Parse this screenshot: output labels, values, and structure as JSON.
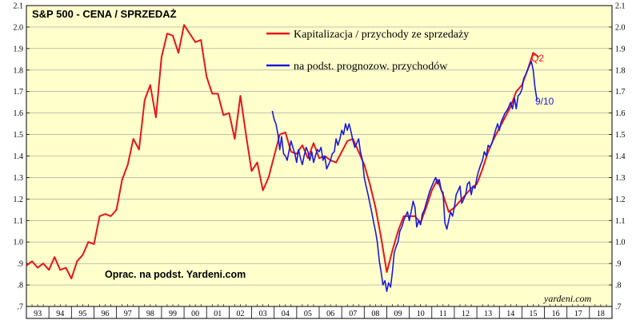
{
  "chart_data": {
    "type": "line",
    "title": "S&P 500",
    "subtitle": "CENA / SPRZEDAŻ",
    "x_tick_labels": [
      "93",
      "94",
      "95",
      "96",
      "97",
      "98",
      "99",
      "00",
      "01",
      "02",
      "03",
      "04",
      "05",
      "06",
      "07",
      "08",
      "09",
      "10",
      "11",
      "12",
      "13",
      "14",
      "15",
      "16",
      "17",
      "18"
    ],
    "y_tick_labels": [
      ".7",
      ".8",
      ".9",
      "1.0",
      "1.1",
      "1.2",
      "1.3",
      "1.4",
      "1.5",
      "1.6",
      "1.7",
      "1.8",
      "1.9",
      "2.0",
      "2.1"
    ],
    "ylim": [
      0.7,
      2.1
    ],
    "xlim": [
      1993.0,
      2019.0
    ],
    "background": "#ffffcc",
    "grid": "horizontal",
    "series": [
      {
        "name": "Kapitalizacja / przychody ze sprzedaży",
        "color": "#e8141a",
        "end_label": "Q2",
        "points": [
          [
            1993.0,
            0.89
          ],
          [
            1993.25,
            0.91
          ],
          [
            1993.5,
            0.88
          ],
          [
            1993.75,
            0.9
          ],
          [
            1994.0,
            0.87
          ],
          [
            1994.25,
            0.93
          ],
          [
            1994.5,
            0.87
          ],
          [
            1994.75,
            0.88
          ],
          [
            1995.0,
            0.83
          ],
          [
            1995.25,
            0.91
          ],
          [
            1995.5,
            0.94
          ],
          [
            1995.75,
            1.0
          ],
          [
            1996.0,
            0.99
          ],
          [
            1996.25,
            1.12
          ],
          [
            1996.5,
            1.13
          ],
          [
            1996.75,
            1.12
          ],
          [
            1997.0,
            1.15
          ],
          [
            1997.25,
            1.29
          ],
          [
            1997.5,
            1.36
          ],
          [
            1997.75,
            1.48
          ],
          [
            1998.0,
            1.43
          ],
          [
            1998.25,
            1.66
          ],
          [
            1998.5,
            1.73
          ],
          [
            1998.75,
            1.58
          ],
          [
            1999.0,
            1.86
          ],
          [
            1999.25,
            1.97
          ],
          [
            1999.5,
            1.96
          ],
          [
            1999.75,
            1.88
          ],
          [
            2000.0,
            2.01
          ],
          [
            2000.25,
            1.97
          ],
          [
            2000.5,
            1.93
          ],
          [
            2000.75,
            1.94
          ],
          [
            2001.0,
            1.77
          ],
          [
            2001.25,
            1.69
          ],
          [
            2001.5,
            1.69
          ],
          [
            2001.75,
            1.59
          ],
          [
            2002.0,
            1.6
          ],
          [
            2002.25,
            1.48
          ],
          [
            2002.5,
            1.68
          ],
          [
            2002.75,
            1.5
          ],
          [
            2003.0,
            1.33
          ],
          [
            2003.25,
            1.37
          ],
          [
            2003.5,
            1.24
          ],
          [
            2003.75,
            1.3
          ],
          [
            2004.0,
            1.4
          ],
          [
            2004.25,
            1.5
          ],
          [
            2004.5,
            1.51
          ],
          [
            2004.75,
            1.42
          ],
          [
            2005.0,
            1.41
          ],
          [
            2005.25,
            1.45
          ],
          [
            2005.5,
            1.39
          ],
          [
            2005.75,
            1.46
          ],
          [
            2006.0,
            1.39
          ],
          [
            2006.25,
            1.4
          ],
          [
            2006.5,
            1.38
          ],
          [
            2006.75,
            1.37
          ],
          [
            2007.0,
            1.42
          ],
          [
            2007.25,
            1.47
          ],
          [
            2007.5,
            1.48
          ],
          [
            2007.75,
            1.42
          ],
          [
            2008.0,
            1.36
          ],
          [
            2008.25,
            1.27
          ],
          [
            2008.5,
            1.16
          ],
          [
            2008.75,
            1.02
          ],
          [
            2009.0,
            0.86
          ],
          [
            2009.25,
            0.96
          ],
          [
            2009.5,
            1.05
          ],
          [
            2009.75,
            1.12
          ],
          [
            2010.0,
            1.12
          ],
          [
            2010.25,
            1.12
          ],
          [
            2010.5,
            1.09
          ],
          [
            2010.75,
            1.16
          ],
          [
            2011.0,
            1.24
          ],
          [
            2011.25,
            1.29
          ],
          [
            2011.5,
            1.22
          ],
          [
            2011.75,
            1.14
          ],
          [
            2012.0,
            1.16
          ],
          [
            2012.25,
            1.19
          ],
          [
            2012.5,
            1.22
          ],
          [
            2012.75,
            1.25
          ],
          [
            2013.0,
            1.27
          ],
          [
            2013.25,
            1.34
          ],
          [
            2013.5,
            1.42
          ],
          [
            2013.75,
            1.48
          ],
          [
            2014.0,
            1.53
          ],
          [
            2014.25,
            1.58
          ],
          [
            2014.5,
            1.63
          ],
          [
            2014.75,
            1.7
          ],
          [
            2015.0,
            1.73
          ],
          [
            2015.25,
            1.8
          ],
          [
            2015.5,
            1.88
          ],
          [
            2015.75,
            1.86
          ]
        ]
      },
      {
        "name": "na podst. prognozow. przychodów",
        "color": "#1a1adc",
        "end_label": "9/10",
        "points": [
          [
            2003.92,
            1.61
          ],
          [
            2004.0,
            1.57
          ],
          [
            2004.08,
            1.55
          ],
          [
            2004.17,
            1.5
          ],
          [
            2004.25,
            1.43
          ],
          [
            2004.33,
            1.49
          ],
          [
            2004.42,
            1.41
          ],
          [
            2004.5,
            1.4
          ],
          [
            2004.58,
            1.38
          ],
          [
            2004.67,
            1.43
          ],
          [
            2004.75,
            1.47
          ],
          [
            2004.83,
            1.44
          ],
          [
            2004.92,
            1.41
          ],
          [
            2005.0,
            1.37
          ],
          [
            2005.08,
            1.43
          ],
          [
            2005.17,
            1.39
          ],
          [
            2005.25,
            1.36
          ],
          [
            2005.33,
            1.4
          ],
          [
            2005.42,
            1.44
          ],
          [
            2005.5,
            1.42
          ],
          [
            2005.58,
            1.38
          ],
          [
            2005.67,
            1.42
          ],
          [
            2005.75,
            1.37
          ],
          [
            2005.83,
            1.4
          ],
          [
            2005.92,
            1.43
          ],
          [
            2006.0,
            1.42
          ],
          [
            2006.08,
            1.44
          ],
          [
            2006.17,
            1.38
          ],
          [
            2006.25,
            1.4
          ],
          [
            2006.33,
            1.34
          ],
          [
            2006.42,
            1.36
          ],
          [
            2006.5,
            1.38
          ],
          [
            2006.58,
            1.41
          ],
          [
            2006.67,
            1.42
          ],
          [
            2006.75,
            1.48
          ],
          [
            2006.83,
            1.45
          ],
          [
            2006.92,
            1.48
          ],
          [
            2007.0,
            1.52
          ],
          [
            2007.08,
            1.5
          ],
          [
            2007.17,
            1.55
          ],
          [
            2007.25,
            1.52
          ],
          [
            2007.33,
            1.55
          ],
          [
            2007.42,
            1.51
          ],
          [
            2007.5,
            1.47
          ],
          [
            2007.58,
            1.44
          ],
          [
            2007.67,
            1.46
          ],
          [
            2007.75,
            1.48
          ],
          [
            2007.83,
            1.42
          ],
          [
            2007.92,
            1.38
          ],
          [
            2008.0,
            1.3
          ],
          [
            2008.08,
            1.26
          ],
          [
            2008.17,
            1.22
          ],
          [
            2008.25,
            1.18
          ],
          [
            2008.33,
            1.14
          ],
          [
            2008.42,
            1.09
          ],
          [
            2008.5,
            1.05
          ],
          [
            2008.58,
            1.0
          ],
          [
            2008.67,
            0.91
          ],
          [
            2008.75,
            0.86
          ],
          [
            2008.83,
            0.8
          ],
          [
            2008.92,
            0.82
          ],
          [
            2009.0,
            0.77
          ],
          [
            2009.08,
            0.81
          ],
          [
            2009.17,
            0.79
          ],
          [
            2009.25,
            0.86
          ],
          [
            2009.33,
            0.95
          ],
          [
            2009.42,
            0.98
          ],
          [
            2009.5,
            1.0
          ],
          [
            2009.58,
            1.05
          ],
          [
            2009.67,
            1.07
          ],
          [
            2009.75,
            1.1
          ],
          [
            2009.83,
            1.12
          ],
          [
            2009.92,
            1.14
          ],
          [
            2010.0,
            1.1
          ],
          [
            2010.08,
            1.14
          ],
          [
            2010.17,
            1.19
          ],
          [
            2010.25,
            1.16
          ],
          [
            2010.33,
            1.07
          ],
          [
            2010.42,
            1.1
          ],
          [
            2010.5,
            1.08
          ],
          [
            2010.58,
            1.13
          ],
          [
            2010.67,
            1.15
          ],
          [
            2010.75,
            1.18
          ],
          [
            2010.83,
            1.21
          ],
          [
            2010.92,
            1.24
          ],
          [
            2011.0,
            1.26
          ],
          [
            2011.08,
            1.28
          ],
          [
            2011.17,
            1.3
          ],
          [
            2011.25,
            1.27
          ],
          [
            2011.33,
            1.29
          ],
          [
            2011.42,
            1.24
          ],
          [
            2011.5,
            1.23
          ],
          [
            2011.58,
            1.09
          ],
          [
            2011.67,
            1.06
          ],
          [
            2011.75,
            1.1
          ],
          [
            2011.83,
            1.14
          ],
          [
            2011.92,
            1.12
          ],
          [
            2012.0,
            1.16
          ],
          [
            2012.08,
            1.22
          ],
          [
            2012.17,
            1.24
          ],
          [
            2012.25,
            1.26
          ],
          [
            2012.33,
            1.18
          ],
          [
            2012.42,
            1.2
          ],
          [
            2012.5,
            1.22
          ],
          [
            2012.58,
            1.27
          ],
          [
            2012.67,
            1.28
          ],
          [
            2012.75,
            1.22
          ],
          [
            2012.83,
            1.26
          ],
          [
            2012.92,
            1.25
          ],
          [
            2013.0,
            1.3
          ],
          [
            2013.08,
            1.33
          ],
          [
            2013.17,
            1.36
          ],
          [
            2013.25,
            1.38
          ],
          [
            2013.33,
            1.42
          ],
          [
            2013.42,
            1.4
          ],
          [
            2013.5,
            1.45
          ],
          [
            2013.58,
            1.44
          ],
          [
            2013.67,
            1.46
          ],
          [
            2013.75,
            1.49
          ],
          [
            2013.83,
            1.52
          ],
          [
            2013.92,
            1.55
          ],
          [
            2014.0,
            1.52
          ],
          [
            2014.08,
            1.56
          ],
          [
            2014.17,
            1.58
          ],
          [
            2014.25,
            1.6
          ],
          [
            2014.33,
            1.61
          ],
          [
            2014.42,
            1.63
          ],
          [
            2014.5,
            1.65
          ],
          [
            2014.58,
            1.62
          ],
          [
            2014.67,
            1.67
          ],
          [
            2014.75,
            1.62
          ],
          [
            2014.83,
            1.68
          ],
          [
            2014.92,
            1.69
          ],
          [
            2015.0,
            1.71
          ],
          [
            2015.08,
            1.76
          ],
          [
            2015.17,
            1.78
          ],
          [
            2015.25,
            1.8
          ],
          [
            2015.33,
            1.82
          ],
          [
            2015.42,
            1.84
          ],
          [
            2015.5,
            1.8
          ],
          [
            2015.58,
            1.72
          ],
          [
            2015.67,
            1.66
          ]
        ]
      }
    ],
    "annotations": [
      {
        "text": "Oprac. na podst. Yardeni.com"
      },
      {
        "text": "yardeni.com"
      }
    ]
  }
}
